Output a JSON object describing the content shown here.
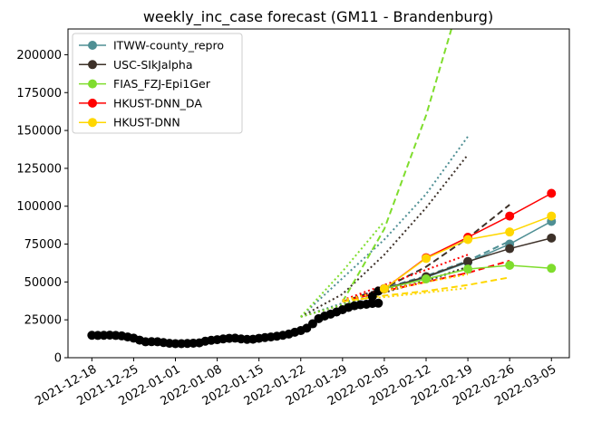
{
  "chart_data": {
    "type": "line",
    "title": "weekly_inc_case forecast (GM11 - Brandenburg)",
    "xlabel": "",
    "ylabel": "",
    "x_tick_labels": [
      "2021-12-18",
      "2021-12-25",
      "2022-01-01",
      "2022-01-08",
      "2022-01-15",
      "2022-01-22",
      "2022-01-29",
      "2022-02-05",
      "2022-02-12",
      "2022-02-19",
      "2022-02-26",
      "2022-03-05"
    ],
    "y_tick_labels": [
      "0",
      "25000",
      "50000",
      "75000",
      "100000",
      "125000",
      "150000",
      "175000",
      "200000"
    ],
    "xlim": [
      "2021-12-14",
      "2022-03-08"
    ],
    "ylim": [
      0,
      217000
    ],
    "grid": false,
    "legend_position": "top-left",
    "observed": {
      "color": "#000000",
      "x": [
        "2021-12-18",
        "2021-12-19",
        "2021-12-20",
        "2021-12-21",
        "2021-12-22",
        "2021-12-23",
        "2021-12-24",
        "2021-12-25",
        "2021-12-26",
        "2021-12-27",
        "2021-12-28",
        "2021-12-29",
        "2021-12-30",
        "2021-12-31",
        "2022-01-01",
        "2022-01-02",
        "2022-01-03",
        "2022-01-04",
        "2022-01-05",
        "2022-01-06",
        "2022-01-07",
        "2022-01-08",
        "2022-01-09",
        "2022-01-10",
        "2022-01-11",
        "2022-01-12",
        "2022-01-13",
        "2022-01-14",
        "2022-01-15",
        "2022-01-16",
        "2022-01-17",
        "2022-01-18",
        "2022-01-19",
        "2022-01-20",
        "2022-01-21",
        "2022-01-22",
        "2022-01-23",
        "2022-01-24",
        "2022-01-25",
        "2022-01-26",
        "2022-01-27",
        "2022-01-28",
        "2022-01-29",
        "2022-01-30",
        "2022-01-31",
        "2022-02-01",
        "2022-02-02",
        "2022-02-03",
        "2022-02-04"
      ],
      "y": [
        14800,
        14700,
        14800,
        14900,
        14700,
        14400,
        13700,
        12900,
        11600,
        10500,
        10600,
        10500,
        10000,
        9500,
        9300,
        9300,
        9400,
        9600,
        9800,
        10900,
        11500,
        11900,
        12400,
        12800,
        12900,
        12400,
        12100,
        12200,
        12800,
        13300,
        13700,
        14200,
        14800,
        15600,
        16800,
        17900,
        19500,
        22400,
        25800,
        27500,
        28800,
        30200,
        31700,
        33200,
        34300,
        35000,
        35300,
        35800,
        36000
      ]
    },
    "observed_tail": {
      "color": "#000000",
      "x": [
        "2022-01-30",
        "2022-01-31",
        "2022-02-01",
        "2022-02-02",
        "2022-02-03",
        "2022-02-04",
        "2022-02-05"
      ],
      "y": [
        34300,
        35000,
        35300,
        35800,
        40500,
        44000,
        45500
      ]
    },
    "series": [
      {
        "name": "ITWW-county_repro",
        "color": "#4f8f94",
        "x": [
          "2022-02-05",
          "2022-02-12",
          "2022-02-19",
          "2022-02-26",
          "2022-03-05"
        ],
        "y": [
          45500,
          53000,
          63000,
          75000,
          90000
        ],
        "upper": {
          "x": [
            "2022-01-22",
            "2022-02-05",
            "2022-02-12",
            "2022-02-19"
          ],
          "y": [
            27000,
            78000,
            108000,
            146000
          ]
        },
        "lower": {
          "x": [
            "2022-01-22",
            "2022-02-05",
            "2022-02-12",
            "2022-02-19"
          ],
          "y": [
            27000,
            45000,
            50000,
            60000
          ]
        },
        "dashed": {
          "x": [
            "2022-01-29",
            "2022-02-05",
            "2022-02-12",
            "2022-02-19",
            "2022-02-26"
          ],
          "y": [
            37000,
            46000,
            54000,
            64000,
            77000
          ]
        }
      },
      {
        "name": "USC-SIkJalpha",
        "color": "#3d3129",
        "x": [
          "2022-02-05",
          "2022-02-12",
          "2022-02-19",
          "2022-02-26",
          "2022-03-05"
        ],
        "y": [
          45500,
          53500,
          63500,
          72000,
          79000
        ],
        "upper": {
          "x": [
            "2022-01-22",
            "2022-01-29",
            "2022-02-05",
            "2022-02-12",
            "2022-02-19"
          ],
          "y": [
            27000,
            42000,
            68000,
            99000,
            134000
          ]
        },
        "lower": {
          "x": [
            "2022-01-22",
            "2022-02-05",
            "2022-02-12",
            "2022-02-19"
          ],
          "y": [
            27000,
            43000,
            51000,
            60000
          ]
        },
        "dashed": {
          "x": [
            "2022-01-29",
            "2022-02-05",
            "2022-02-12",
            "2022-02-19",
            "2022-02-26"
          ],
          "y": [
            37000,
            46000,
            60000,
            79000,
            101000
          ]
        }
      },
      {
        "name": "FIAS_FZJ-Epi1Ger",
        "color": "#7fdd2d",
        "x": [
          "2022-02-05",
          "2022-02-12",
          "2022-02-19",
          "2022-02-26",
          "2022-03-05"
        ],
        "y": [
          45500,
          52000,
          58500,
          61000,
          59000
        ],
        "upper": {
          "x": [
            "2022-01-22",
            "2022-01-29",
            "2022-02-05"
          ],
          "y": [
            27000,
            57000,
            90000
          ]
        },
        "lower": {
          "x": [
            "2022-01-22",
            "2022-02-05"
          ],
          "y": [
            27000,
            43000
          ]
        },
        "dashed": {
          "x": [
            "2022-01-29",
            "2022-02-05",
            "2022-02-12",
            "2022-02-19"
          ],
          "y": [
            37000,
            85000,
            160000,
            254000
          ]
        }
      },
      {
        "name": "HKUST-DNN_DA",
        "color": "#ff0000",
        "x": [
          "2022-02-05",
          "2022-02-12",
          "2022-02-19",
          "2022-02-26",
          "2022-03-05"
        ],
        "y": [
          45500,
          66000,
          79500,
          93500,
          108500
        ],
        "upper": {
          "x": [
            "2022-01-29",
            "2022-02-05",
            "2022-02-12",
            "2022-02-19"
          ],
          "y": [
            38000,
            48000,
            58000,
            68000
          ]
        },
        "lower": {
          "x": [
            "2022-01-29",
            "2022-02-05",
            "2022-02-12",
            "2022-02-19"
          ],
          "y": [
            38000,
            45000,
            50000,
            56000
          ]
        },
        "dashed": {
          "x": [
            "2022-01-29",
            "2022-02-05",
            "2022-02-12",
            "2022-02-19",
            "2022-02-26"
          ],
          "y": [
            37000,
            44000,
            50000,
            56000,
            64000
          ]
        }
      },
      {
        "name": "HKUST-DNN",
        "color": "#ffd700",
        "x": [
          "2022-02-05",
          "2022-02-12",
          "2022-02-19",
          "2022-02-26",
          "2022-03-05"
        ],
        "y": [
          45500,
          65500,
          78000,
          83000,
          93500
        ],
        "upper": {
          "x": [
            "2022-01-29",
            "2022-02-05",
            "2022-02-12",
            "2022-02-19"
          ],
          "y": [
            38000,
            44000,
            50000,
            55000
          ]
        },
        "lower": {
          "x": [
            "2022-01-29",
            "2022-02-05",
            "2022-02-12",
            "2022-02-19"
          ],
          "y": [
            38000,
            40000,
            43000,
            46000
          ]
        },
        "dashed": {
          "x": [
            "2022-01-29",
            "2022-02-05",
            "2022-02-12",
            "2022-02-19",
            "2022-02-26"
          ],
          "y": [
            37000,
            41000,
            44000,
            48000,
            53000
          ]
        }
      }
    ]
  }
}
